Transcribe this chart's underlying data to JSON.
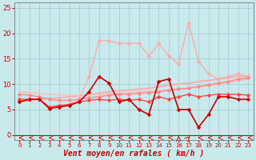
{
  "xlabel": "Vent moyen/en rafales ( km/h )",
  "xlim": [
    -0.5,
    23.5
  ],
  "ylim": [
    -1,
    26
  ],
  "yticks": [
    0,
    5,
    10,
    15,
    20,
    25
  ],
  "xticks": [
    0,
    1,
    2,
    3,
    4,
    5,
    6,
    7,
    8,
    9,
    10,
    11,
    12,
    13,
    14,
    15,
    16,
    17,
    18,
    19,
    20,
    21,
    22,
    23
  ],
  "bg_color": "#c8eaec",
  "grid_color": "#a0c8cc",
  "series": [
    {
      "label": "rafales_light",
      "y": [
        6.5,
        7.0,
        7.0,
        5.5,
        5.5,
        6.0,
        7.0,
        11.5,
        18.5,
        18.5,
        18.0,
        18.0,
        18.0,
        15.5,
        18.0,
        15.5,
        14.0,
        22.0,
        14.5,
        12.0,
        11.0,
        11.5,
        12.0,
        11.5
      ],
      "color": "#ffaaaa",
      "lw": 1.0,
      "marker": "D",
      "ms": 2.5,
      "zorder": 2,
      "ls": "-"
    },
    {
      "label": "trend_light1",
      "y": [
        6.5,
        6.8,
        7.0,
        7.2,
        7.3,
        7.5,
        7.7,
        7.9,
        8.2,
        8.5,
        8.7,
        8.8,
        9.0,
        9.2,
        9.5,
        9.8,
        10.0,
        10.2,
        10.5,
        10.7,
        11.0,
        11.2,
        11.5,
        11.5
      ],
      "color": "#ffaaaa",
      "lw": 1.3,
      "marker": null,
      "ms": 0,
      "zorder": 2,
      "ls": "-"
    },
    {
      "label": "trend_light2",
      "y": [
        8.5,
        8.3,
        8.2,
        8.0,
        7.9,
        7.8,
        7.8,
        7.9,
        8.0,
        8.1,
        8.2,
        8.3,
        8.5,
        8.6,
        8.7,
        8.9,
        9.0,
        9.2,
        9.5,
        9.7,
        10.0,
        10.3,
        10.7,
        11.0
      ],
      "color": "#ffbbbb",
      "lw": 1.2,
      "marker": null,
      "ms": 0,
      "zorder": 2,
      "ls": "-"
    },
    {
      "label": "moyen_pink",
      "y": [
        8.0,
        7.8,
        7.5,
        7.0,
        6.8,
        6.8,
        7.0,
        7.3,
        7.5,
        7.8,
        8.0,
        8.0,
        8.2,
        8.3,
        8.5,
        8.8,
        9.0,
        9.2,
        9.5,
        9.8,
        10.2,
        10.5,
        11.0,
        11.2
      ],
      "color": "#ff8888",
      "lw": 1.0,
      "marker": "D",
      "ms": 2.5,
      "zorder": 3,
      "ls": "-"
    },
    {
      "label": "moyen_mid",
      "y": [
        7.0,
        7.0,
        7.0,
        5.5,
        5.8,
        6.0,
        6.5,
        6.8,
        7.0,
        6.8,
        7.0,
        6.8,
        7.0,
        6.5,
        7.5,
        7.0,
        7.5,
        8.0,
        7.5,
        7.8,
        8.0,
        8.0,
        8.0,
        7.8
      ],
      "color": "#ff4444",
      "lw": 1.0,
      "marker": "D",
      "ms": 2.5,
      "zorder": 4,
      "ls": "-"
    },
    {
      "label": "moyen_dark",
      "y": [
        6.5,
        7.0,
        7.0,
        5.2,
        5.5,
        5.8,
        6.5,
        8.5,
        11.5,
        10.2,
        6.5,
        7.0,
        5.0,
        4.0,
        10.5,
        11.0,
        5.0,
        5.0,
        1.5,
        4.0,
        7.5,
        7.5,
        7.0,
        7.0
      ],
      "color": "#cc0000",
      "lw": 1.2,
      "marker": "D",
      "ms": 2.5,
      "zorder": 5,
      "ls": "-"
    }
  ],
  "wind_dirs": [
    180,
    180,
    180,
    180,
    180,
    180,
    180,
    180,
    180,
    180,
    180,
    180,
    180,
    180,
    180,
    180,
    90,
    225,
    180,
    180,
    180,
    180,
    180,
    180
  ],
  "arrow_color": "#cc0000",
  "xlabel_fontsize": 7,
  "tick_fontsize_x": 5,
  "tick_fontsize_y": 6
}
